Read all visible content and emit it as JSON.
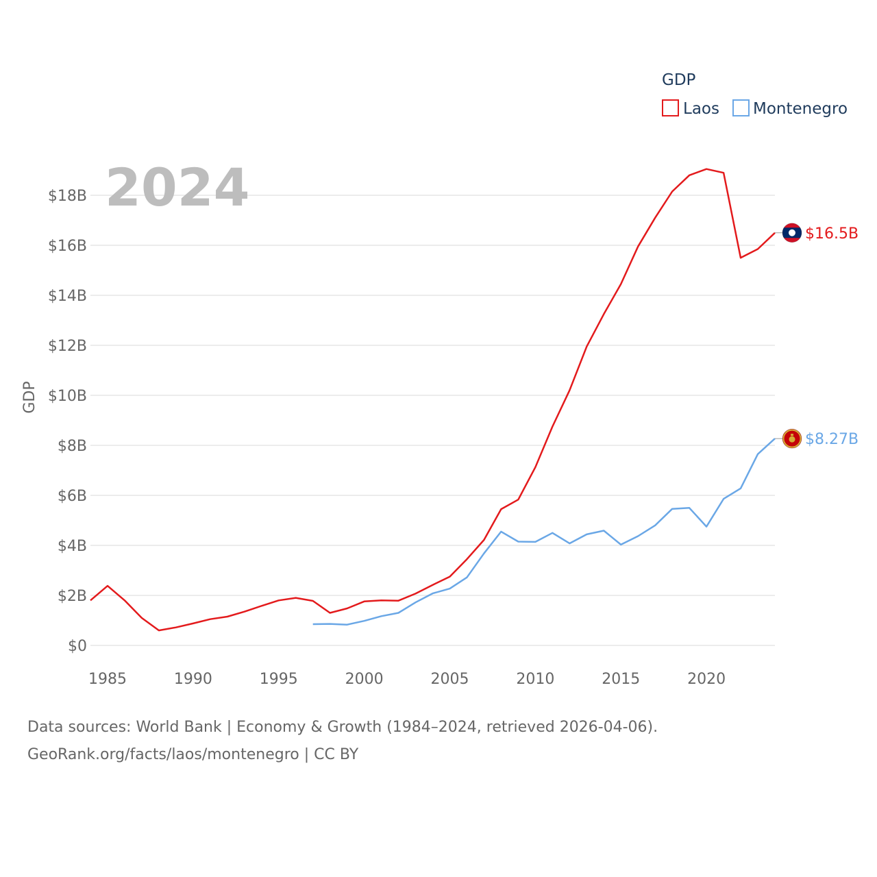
{
  "chart_data": {
    "type": "line",
    "title": "GDP",
    "year_label": "2024",
    "ylabel": "GDP",
    "xlabel": "",
    "xlim": [
      1984,
      2024
    ],
    "ylim": [
      0,
      19
    ],
    "x_ticks": [
      1985,
      1990,
      1995,
      2000,
      2005,
      2010,
      2015,
      2020
    ],
    "y_ticks": [
      {
        "value": 0,
        "label": "$0"
      },
      {
        "value": 2,
        "label": "$2B"
      },
      {
        "value": 4,
        "label": "$4B"
      },
      {
        "value": 6,
        "label": "$6B"
      },
      {
        "value": 8,
        "label": "$8B"
      },
      {
        "value": 10,
        "label": "$10B"
      },
      {
        "value": 12,
        "label": "$12B"
      },
      {
        "value": 14,
        "label": "$14B"
      },
      {
        "value": 16,
        "label": "$16B"
      },
      {
        "value": 18,
        "label": "$18B"
      }
    ],
    "grid": true,
    "legend_position": "top-right",
    "series": [
      {
        "name": "Laos",
        "color": "#e31a1c",
        "end_label": "$16.5B",
        "flag_icon": "laos-flag-icon",
        "x": [
          1984,
          1985,
          1986,
          1987,
          1988,
          1989,
          1990,
          1991,
          1992,
          1993,
          1994,
          1995,
          1996,
          1997,
          1998,
          1999,
          2000,
          2001,
          2002,
          2003,
          2004,
          2005,
          2006,
          2007,
          2008,
          2009,
          2010,
          2011,
          2012,
          2013,
          2014,
          2015,
          2016,
          2017,
          2018,
          2019,
          2020,
          2021,
          2022,
          2023,
          2024
        ],
        "values": [
          1.8,
          2.38,
          1.8,
          1.1,
          0.6,
          0.72,
          0.88,
          1.05,
          1.15,
          1.35,
          1.58,
          1.8,
          1.9,
          1.78,
          1.3,
          1.48,
          1.76,
          1.8,
          1.79,
          2.07,
          2.42,
          2.75,
          3.45,
          4.22,
          5.45,
          5.83,
          7.13,
          8.75,
          10.2,
          11.95,
          13.25,
          14.45,
          15.95,
          17.1,
          18.15,
          18.8,
          19.05,
          18.9,
          15.5,
          15.85,
          16.5
        ]
      },
      {
        "name": "Montenegro",
        "color": "#6aa7e6",
        "end_label": "$8.27B",
        "flag_icon": "montenegro-flag-icon",
        "x": [
          1997,
          1998,
          1999,
          2000,
          2001,
          2002,
          2003,
          2004,
          2005,
          2006,
          2007,
          2008,
          2009,
          2010,
          2011,
          2012,
          2013,
          2014,
          2015,
          2016,
          2017,
          2018,
          2019,
          2020,
          2021,
          2022,
          2023,
          2024
        ],
        "values": [
          0.85,
          0.86,
          0.83,
          0.98,
          1.17,
          1.3,
          1.72,
          2.08,
          2.27,
          2.72,
          3.68,
          4.55,
          4.15,
          4.14,
          4.5,
          4.08,
          4.44,
          4.59,
          4.03,
          4.37,
          4.8,
          5.46,
          5.5,
          4.75,
          5.86,
          6.28,
          7.65,
          8.27
        ]
      }
    ]
  },
  "footer": {
    "line1": "Data sources: World Bank | Economy & Growth (1984–2024, retrieved 2026-04-06).",
    "line2": "GeoRank.org/facts/laos/montenegro | CC BY"
  }
}
